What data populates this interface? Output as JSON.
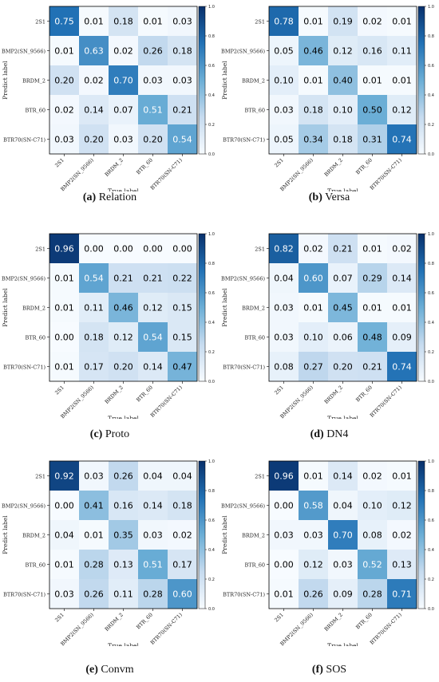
{
  "colors": {
    "low": "#f7fbff",
    "high": "#08306b",
    "text_dark": "#000000",
    "text_light": "#ffffff",
    "frame": "#000000"
  },
  "axis_labels": {
    "x": "True label",
    "y": "Predict label"
  },
  "class_labels": [
    "2S1",
    "BMP2(SN_9566)",
    "BRDM_2",
    "BTR_60",
    "BTR70(SN-C71)"
  ],
  "colorbar_ticks": [
    "0.0",
    "0.2",
    "0.4",
    "0.6",
    "0.8",
    "1.0"
  ],
  "chart_data": [
    {
      "type": "heatmap",
      "caption_letter": "(a)",
      "caption_name": "Relation",
      "x_categories": [
        "2S1",
        "BMP2(SN_9566)",
        "BRDM_2",
        "BTR_60",
        "BTR70(SN-C71)"
      ],
      "y_categories": [
        "2S1",
        "BMP2(SN_9566)",
        "BRDM_2",
        "BTR_60",
        "BTR70(SN-C71)"
      ],
      "xlabel": "True label",
      "ylabel": "Predict label",
      "colorbar_range": [
        0,
        1
      ],
      "values": [
        [
          0.75,
          0.01,
          0.18,
          0.01,
          0.03
        ],
        [
          0.01,
          0.63,
          0.02,
          0.26,
          0.18
        ],
        [
          0.2,
          0.02,
          0.7,
          0.03,
          0.03
        ],
        [
          0.02,
          0.14,
          0.07,
          0.51,
          0.21
        ],
        [
          0.03,
          0.2,
          0.03,
          0.2,
          0.54
        ]
      ]
    },
    {
      "type": "heatmap",
      "caption_letter": "(b)",
      "caption_name": "Versa",
      "x_categories": [
        "2S1",
        "BMP2(SN_9566)",
        "BRDM_2",
        "BTR_60",
        "BTR70(SN-C71)"
      ],
      "y_categories": [
        "2S1",
        "BMP2(SN_9566)",
        "BRDM_2",
        "BTR_60",
        "BTR70(SN-C71)"
      ],
      "xlabel": "True label",
      "ylabel": "Predict label",
      "colorbar_range": [
        0,
        1
      ],
      "values": [
        [
          0.78,
          0.01,
          0.19,
          0.02,
          0.01
        ],
        [
          0.05,
          0.46,
          0.12,
          0.16,
          0.11
        ],
        [
          0.1,
          0.01,
          0.4,
          0.01,
          0.01
        ],
        [
          0.03,
          0.18,
          0.1,
          0.5,
          0.12
        ],
        [
          0.05,
          0.34,
          0.18,
          0.31,
          0.74
        ]
      ]
    },
    {
      "type": "heatmap",
      "caption_letter": "(c)",
      "caption_name": "Proto",
      "x_categories": [
        "2S1",
        "BMP2(SN_9566)",
        "BRDM_2",
        "BTR_60",
        "BTR70(SN-C71)"
      ],
      "y_categories": [
        "2S1",
        "BMP2(SN_9566)",
        "BRDM_2",
        "BTR_60",
        "BTR70(SN-C71)"
      ],
      "xlabel": "True label",
      "ylabel": "Predict label",
      "colorbar_range": [
        0,
        1
      ],
      "values": [
        [
          0.96,
          0.0,
          0.0,
          0.0,
          0.0
        ],
        [
          0.01,
          0.54,
          0.21,
          0.21,
          0.22
        ],
        [
          0.01,
          0.11,
          0.46,
          0.12,
          0.15
        ],
        [
          0.0,
          0.18,
          0.12,
          0.54,
          0.15
        ],
        [
          0.01,
          0.17,
          0.2,
          0.14,
          0.47
        ]
      ]
    },
    {
      "type": "heatmap",
      "caption_letter": "(d)",
      "caption_name": "DN4",
      "x_categories": [
        "2S1",
        "BMP2(SN_9566)",
        "BRDM_2",
        "BTR_60",
        "BTR70(SN-C71)"
      ],
      "y_categories": [
        "2S1",
        "BMP2(SN_9566)",
        "BRDM_2",
        "BTR_60",
        "BTR70(SN-C71)"
      ],
      "xlabel": "True label",
      "ylabel": "Predict label",
      "colorbar_range": [
        0,
        1
      ],
      "values": [
        [
          0.82,
          0.02,
          0.21,
          0.01,
          0.02
        ],
        [
          0.04,
          0.6,
          0.07,
          0.29,
          0.14
        ],
        [
          0.03,
          0.01,
          0.45,
          0.01,
          0.01
        ],
        [
          0.03,
          0.1,
          0.06,
          0.48,
          0.09
        ],
        [
          0.08,
          0.27,
          0.2,
          0.21,
          0.74
        ]
      ]
    },
    {
      "type": "heatmap",
      "caption_letter": "(e)",
      "caption_name": "Convm",
      "x_categories": [
        "2S1",
        "BMP2(SN_9566)",
        "BRDM_2",
        "BTR_60",
        "BTR70(SN-C71)"
      ],
      "y_categories": [
        "2S1",
        "BMP2(SN_9566)",
        "BRDM_2",
        "BTR_60",
        "BTR70(SN-C71)"
      ],
      "xlabel": "True label",
      "ylabel": "Predict label",
      "colorbar_range": [
        0,
        1
      ],
      "values": [
        [
          0.92,
          0.03,
          0.26,
          0.04,
          0.04
        ],
        [
          0.0,
          0.41,
          0.16,
          0.14,
          0.18
        ],
        [
          0.04,
          0.01,
          0.35,
          0.03,
          0.02
        ],
        [
          0.01,
          0.28,
          0.13,
          0.51,
          0.17
        ],
        [
          0.03,
          0.26,
          0.11,
          0.28,
          0.6
        ]
      ]
    },
    {
      "type": "heatmap",
      "caption_letter": "(f)",
      "caption_name": "SOS",
      "x_categories": [
        "2S1",
        "BMP2(SN_9566)",
        "BRDM_2",
        "BTR_60",
        "BTR70(SN-C71)"
      ],
      "y_categories": [
        "2S1",
        "BMP2(SN_9566)",
        "BRDM_2",
        "BTR_60",
        "BTR70(SN-C71)"
      ],
      "xlabel": "True label",
      "ylabel": "Predict label",
      "colorbar_range": [
        0,
        1
      ],
      "values": [
        [
          0.96,
          0.01,
          0.14,
          0.02,
          0.01
        ],
        [
          0.0,
          0.58,
          0.04,
          0.1,
          0.12
        ],
        [
          0.03,
          0.03,
          0.7,
          0.08,
          0.02
        ],
        [
          0.0,
          0.12,
          0.03,
          0.52,
          0.13
        ],
        [
          0.01,
          0.26,
          0.09,
          0.28,
          0.71
        ]
      ]
    }
  ]
}
